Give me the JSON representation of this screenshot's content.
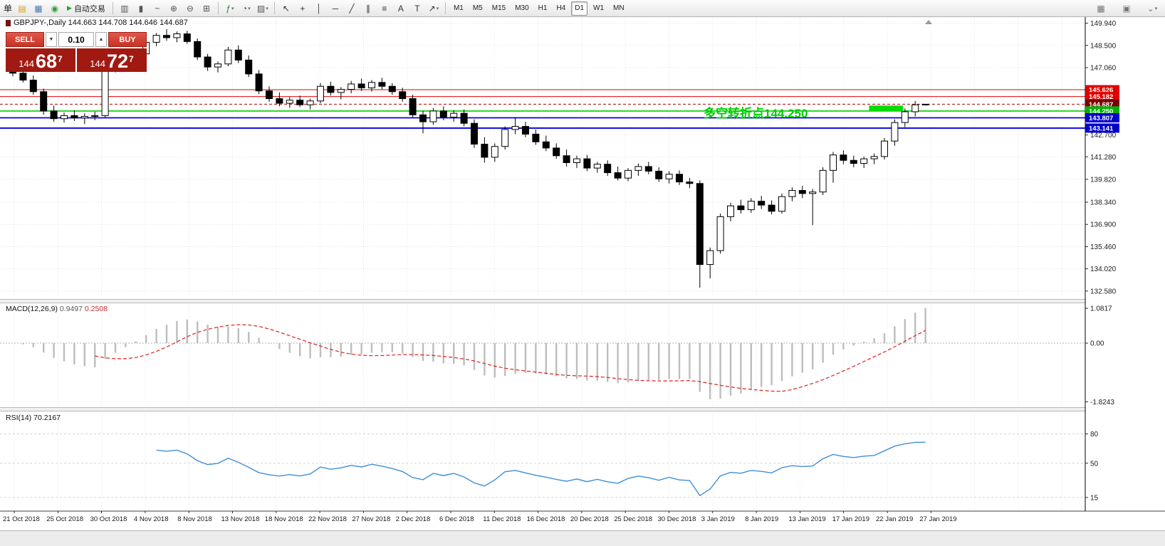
{
  "toolbar": {
    "order_label": "单",
    "autotrading_label": "自动交易",
    "autotrading_play_glyph": "▶",
    "dropdown_glyph": "▾",
    "icons_left": [
      {
        "name": "terminal-icon",
        "glyph": "▤",
        "color": "#d8a010"
      },
      {
        "name": "new-chart-icon",
        "glyph": "▦",
        "color": "#4a78b8"
      },
      {
        "name": "strategy-tester-icon",
        "glyph": "◉",
        "color": "#3a9a3a"
      }
    ],
    "icons_chart": [
      {
        "name": "bar-chart-icon",
        "glyph": "▥",
        "color": "#555555"
      },
      {
        "name": "candlestick-chart-icon",
        "glyph": "▮",
        "color": "#555555"
      },
      {
        "name": "line-chart-icon",
        "glyph": "~",
        "color": "#555555"
      },
      {
        "name": "zoom-in-icon",
        "glyph": "⊕",
        "color": "#555555"
      },
      {
        "name": "zoom-out-icon",
        "glyph": "⊖",
        "color": "#555555"
      },
      {
        "name": "tile-windows-icon",
        "glyph": "⊞",
        "color": "#555555"
      }
    ],
    "icons_tools": [
      {
        "name": "indicators-icon",
        "glyph": "ƒ",
        "color": "#2e7d32",
        "dropdown": true
      },
      {
        "name": "periods-icon",
        "glyph": "◔",
        "color": "#555555",
        "dropdown": true
      },
      {
        "name": "templates-icon",
        "glyph": "▨",
        "color": "#555555",
        "dropdown": true
      }
    ],
    "icons_draw": [
      {
        "name": "cursor-icon",
        "glyph": "↖",
        "color": "#333333"
      },
      {
        "name": "crosshair-icon",
        "glyph": "+",
        "color": "#333333"
      },
      {
        "name": "vertical-line-icon",
        "glyph": "│",
        "color": "#333333"
      },
      {
        "name": "horizontal-line-icon",
        "glyph": "─",
        "color": "#333333"
      },
      {
        "name": "trendline-icon",
        "glyph": "╱",
        "color": "#333333"
      },
      {
        "name": "channel-icon",
        "glyph": "∥",
        "color": "#333333"
      },
      {
        "name": "fibonacci-icon",
        "glyph": "≡",
        "color": "#333333"
      },
      {
        "name": "text-icon",
        "glyph": "A",
        "color": "#333333"
      },
      {
        "name": "text-label-icon",
        "glyph": "T",
        "color": "#333333"
      },
      {
        "name": "arrows-icon",
        "glyph": "↗",
        "color": "#333333",
        "dropdown": true
      }
    ],
    "timeframes": [
      {
        "label": "M1"
      },
      {
        "label": "M5"
      },
      {
        "label": "M15"
      },
      {
        "label": "M30"
      },
      {
        "label": "H1"
      },
      {
        "label": "H4"
      },
      {
        "label": "D1",
        "active": true
      },
      {
        "label": "W1"
      },
      {
        "label": "MN"
      }
    ],
    "icons_right": [
      {
        "name": "data-window-icon",
        "glyph": "▦",
        "color": "#777777"
      },
      {
        "name": "window-layout-icon",
        "glyph": "▣",
        "color": "#777777"
      },
      {
        "name": "more-options-icon",
        "glyph": "⌄",
        "color": "#777777",
        "dropdown": true
      }
    ]
  },
  "trade_panel": {
    "sell_label": "SELL",
    "buy_label": "BUY",
    "volume": "0.10",
    "vol_down_glyph": "▼",
    "vol_up_glyph": "▲",
    "sell_price_base": "144",
    "sell_price_pips": "68",
    "sell_price_sup": "7",
    "buy_price_base": "144",
    "buy_price_pips": "72",
    "buy_price_sup": "7"
  },
  "chart_data": {
    "type": "candlestick",
    "symbol": "GBPJPY-",
    "period": "Daily",
    "title": "GBPJPY-,Daily 144.663 144.708 144.646 144.687",
    "annotation": {
      "text": "多空转折点144.250",
      "color": "#00cc00"
    },
    "price_axis_labels": [
      "149.940",
      "148.500",
      "147.060",
      "142.700",
      "141.280",
      "139.820",
      "138.340",
      "136.900",
      "135.460",
      "134.020",
      "132.580"
    ],
    "price_range": [
      132.25,
      150.15
    ],
    "levels": [
      {
        "price": 145.626,
        "label": "145.626",
        "line_color": "#e60000",
        "label_bg": "#e00000",
        "width": 1
      },
      {
        "price": 145.182,
        "label": "145.182",
        "line_color": "#e60000",
        "label_bg": "#e00000",
        "width": 1
      },
      {
        "price": 144.687,
        "label": "144.687",
        "line_color": "#b00000",
        "label_bg": "#7a0000",
        "width": 1,
        "dash": "4,3",
        "current": true
      },
      {
        "price": 144.25,
        "label": "144.250",
        "line_color": "#00cc00",
        "label_bg": "#00b300",
        "width": 1.6
      },
      {
        "price": 143.807,
        "label": "143.807",
        "line_color": "#0000e6",
        "label_bg": "#0000cc",
        "width": 1.8
      },
      {
        "price": 143.141,
        "label": "143.141",
        "line_color": "#0000e6",
        "label_bg": "#0000cc",
        "width": 1.8
      }
    ],
    "highlight_box": {
      "bar_start": 83.5,
      "bar_end": 86.8,
      "price_top": 144.6,
      "price_bottom": 144.26,
      "color": "#00dd00"
    },
    "x_labels": [
      "21 Oct 2018",
      "25 Oct 2018",
      "30 Oct 2018",
      "4 Nov 2018",
      "8 Nov 2018",
      "13 Nov 2018",
      "18 Nov 2018",
      "22 Nov 2018",
      "27 Nov 2018",
      "2 Dec 2018",
      "6 Dec 2018",
      "11 Dec 2018",
      "16 Dec 2018",
      "20 Dec 2018",
      "25 Dec 2018",
      "30 Dec 2018",
      "3 Jan 2019",
      "8 Jan 2019",
      "13 Jan 2019",
      "17 Jan 2019",
      "22 Jan 2019",
      "27 Jan 2019"
    ],
    "candles": [
      [
        146.9,
        147.2,
        146.5,
        146.7
      ],
      [
        146.7,
        146.95,
        146.1,
        146.25
      ],
      [
        146.25,
        146.55,
        145.3,
        145.5
      ],
      [
        145.5,
        145.7,
        144.0,
        144.25
      ],
      [
        144.25,
        144.6,
        143.55,
        143.75
      ],
      [
        143.75,
        144.15,
        143.5,
        143.95
      ],
      [
        143.95,
        144.3,
        143.6,
        143.8
      ],
      [
        143.8,
        144.1,
        143.4,
        143.9
      ],
      [
        143.9,
        144.2,
        143.65,
        143.95
      ],
      [
        143.95,
        147.6,
        143.85,
        147.4
      ],
      [
        147.4,
        147.95,
        146.75,
        147.15
      ],
      [
        147.15,
        147.65,
        146.85,
        147.45
      ],
      [
        147.45,
        148.15,
        147.2,
        147.95
      ],
      [
        147.95,
        148.85,
        147.75,
        148.7
      ],
      [
        148.7,
        149.3,
        148.45,
        149.15
      ],
      [
        149.15,
        149.55,
        148.8,
        149.0
      ],
      [
        149.0,
        149.4,
        148.7,
        149.25
      ],
      [
        149.25,
        149.45,
        148.6,
        148.75
      ],
      [
        148.75,
        148.95,
        147.55,
        147.75
      ],
      [
        147.75,
        147.95,
        146.85,
        147.1
      ],
      [
        147.1,
        147.45,
        146.75,
        147.3
      ],
      [
        147.3,
        148.4,
        147.15,
        148.2
      ],
      [
        148.2,
        148.5,
        147.35,
        147.55
      ],
      [
        147.55,
        147.85,
        146.45,
        146.65
      ],
      [
        146.65,
        146.9,
        145.35,
        145.55
      ],
      [
        145.55,
        145.85,
        144.85,
        145.05
      ],
      [
        145.05,
        145.45,
        144.55,
        144.75
      ],
      [
        144.75,
        145.15,
        144.45,
        144.95
      ],
      [
        144.95,
        145.25,
        144.5,
        144.65
      ],
      [
        144.65,
        145.05,
        144.35,
        144.9
      ],
      [
        144.9,
        146.05,
        144.75,
        145.85
      ],
      [
        145.85,
        146.15,
        145.25,
        145.45
      ],
      [
        145.45,
        145.8,
        145.0,
        145.65
      ],
      [
        145.65,
        146.2,
        145.4,
        146.0
      ],
      [
        146.0,
        146.35,
        145.55,
        145.75
      ],
      [
        145.75,
        146.25,
        145.5,
        146.1
      ],
      [
        146.1,
        146.4,
        145.65,
        145.85
      ],
      [
        145.85,
        146.05,
        145.3,
        145.5
      ],
      [
        145.5,
        145.75,
        144.85,
        145.05
      ],
      [
        145.05,
        145.3,
        143.8,
        144.0
      ],
      [
        144.0,
        144.25,
        142.8,
        143.55
      ],
      [
        143.55,
        144.45,
        143.35,
        144.25
      ],
      [
        144.25,
        144.55,
        143.65,
        143.85
      ],
      [
        143.85,
        144.3,
        143.55,
        144.1
      ],
      [
        144.1,
        144.35,
        143.25,
        143.45
      ],
      [
        143.45,
        143.7,
        141.85,
        142.1
      ],
      [
        142.1,
        142.55,
        140.9,
        141.25
      ],
      [
        141.25,
        142.15,
        140.95,
        141.95
      ],
      [
        141.95,
        143.25,
        141.75,
        143.05
      ],
      [
        143.05,
        143.85,
        142.75,
        143.25
      ],
      [
        143.25,
        143.55,
        142.55,
        142.75
      ],
      [
        142.75,
        143.05,
        142.05,
        142.25
      ],
      [
        142.25,
        142.65,
        141.65,
        141.85
      ],
      [
        141.85,
        142.15,
        141.15,
        141.35
      ],
      [
        141.35,
        141.75,
        140.65,
        140.9
      ],
      [
        140.9,
        141.35,
        140.55,
        141.15
      ],
      [
        141.15,
        141.4,
        140.35,
        140.55
      ],
      [
        140.55,
        140.95,
        140.25,
        140.8
      ],
      [
        140.8,
        141.05,
        140.05,
        140.25
      ],
      [
        140.25,
        140.65,
        139.75,
        139.9
      ],
      [
        139.9,
        140.55,
        139.7,
        140.4
      ],
      [
        140.4,
        140.85,
        140.05,
        140.65
      ],
      [
        140.65,
        140.95,
        140.15,
        140.35
      ],
      [
        140.35,
        140.6,
        139.65,
        139.85
      ],
      [
        139.85,
        140.35,
        139.55,
        140.15
      ],
      [
        140.15,
        140.4,
        139.45,
        139.65
      ],
      [
        139.65,
        139.9,
        139.25,
        139.55
      ],
      [
        139.55,
        139.75,
        132.8,
        134.3
      ],
      [
        134.3,
        135.4,
        133.4,
        135.2
      ],
      [
        135.2,
        137.6,
        135.0,
        137.4
      ],
      [
        137.4,
        138.3,
        137.1,
        138.1
      ],
      [
        138.1,
        138.5,
        137.6,
        137.85
      ],
      [
        137.85,
        138.6,
        137.65,
        138.4
      ],
      [
        138.4,
        138.75,
        137.9,
        138.15
      ],
      [
        138.15,
        138.45,
        137.55,
        137.75
      ],
      [
        137.75,
        138.9,
        137.6,
        138.7
      ],
      [
        138.7,
        139.3,
        138.4,
        139.1
      ],
      [
        139.1,
        139.4,
        138.6,
        138.9
      ],
      [
        138.9,
        139.2,
        136.85,
        139.0
      ],
      [
        139.0,
        140.6,
        138.8,
        140.4
      ],
      [
        140.4,
        141.6,
        139.6,
        141.4
      ],
      [
        141.4,
        141.7,
        140.8,
        141.05
      ],
      [
        141.05,
        141.35,
        140.6,
        140.85
      ],
      [
        140.85,
        141.3,
        140.55,
        141.15
      ],
      [
        141.15,
        141.5,
        140.8,
        141.3
      ],
      [
        141.3,
        142.5,
        141.1,
        142.3
      ],
      [
        142.3,
        143.7,
        142.0,
        143.5
      ],
      [
        143.5,
        144.4,
        143.2,
        144.2
      ],
      [
        144.2,
        144.9,
        143.9,
        144.65
      ],
      [
        144.663,
        144.708,
        144.646,
        144.687
      ]
    ],
    "macd": {
      "label": "MACD(12,26,9)",
      "value_main": "0.9497",
      "value_signal": "0.2508",
      "fast": 12,
      "slow": 26,
      "signal_period": 9,
      "axis_labels": [
        "1.0817",
        "0.00",
        "-1.8243"
      ],
      "range": [
        -1.9,
        1.15
      ],
      "histogram_color": "#bdbdbd",
      "signal_color": "#dd2222"
    },
    "rsi": {
      "label": "RSI(14)",
      "value": "70.2167",
      "period": 14,
      "axis_labels": [
        "80",
        "50",
        "15"
      ],
      "range": [
        4,
        100
      ],
      "line_color": "#3f8fd6"
    }
  }
}
